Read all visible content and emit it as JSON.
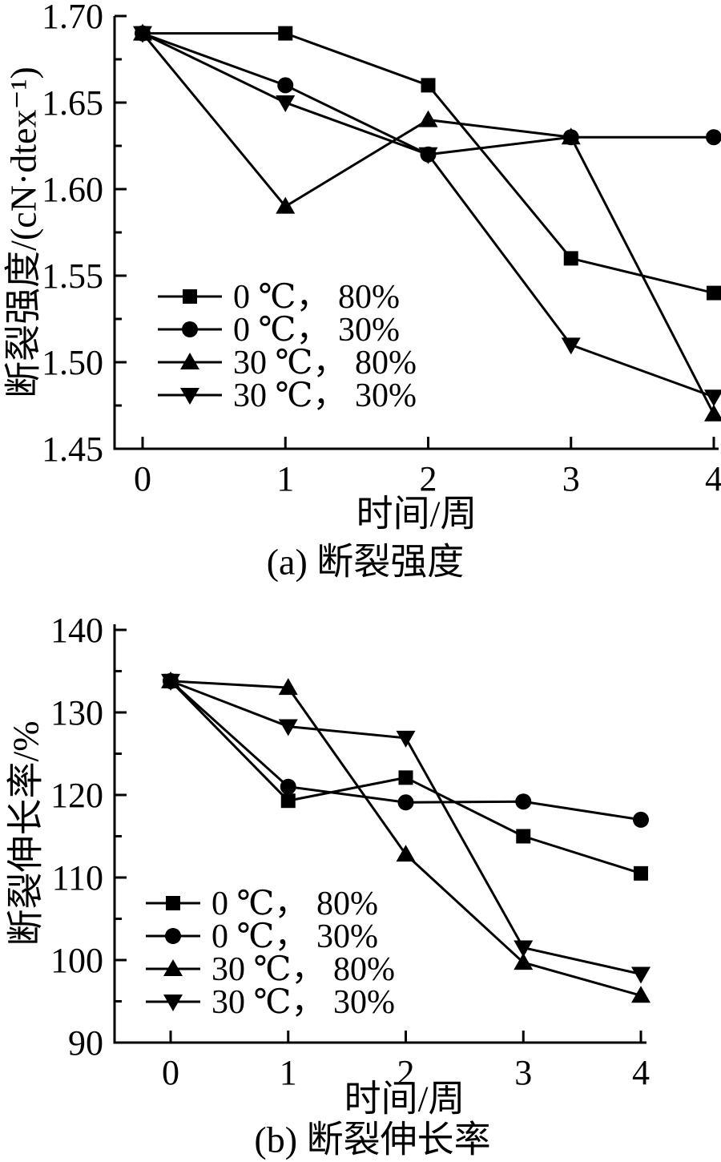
{
  "chart_data": [
    {
      "type": "line",
      "panel": "a",
      "caption": "(a) 断裂强度",
      "xlabel": "时间/周",
      "ylabel": "断裂强度/(cN·dtex⁻¹)",
      "x": [
        0,
        1,
        2,
        3,
        4
      ],
      "x_tick_labels": [
        "0",
        "1",
        "2",
        "3",
        "4"
      ],
      "ylim": [
        1.45,
        1.7
      ],
      "y_ticks": [
        {
          "v": 1.45,
          "label": "1.45"
        },
        {
          "v": 1.5,
          "label": "1.50"
        },
        {
          "v": 1.55,
          "label": "1.55"
        },
        {
          "v": 1.6,
          "label": "1.60"
        },
        {
          "v": 1.65,
          "label": "1.65"
        },
        {
          "v": 1.7,
          "label": "1.70"
        }
      ],
      "y_minor_ticks": [
        1.475,
        1.525,
        1.575,
        1.625,
        1.675
      ],
      "grid": false,
      "legend_position": "inside-lower-left",
      "series": [
        {
          "name": "0 ℃， 80%",
          "marker": "square",
          "values": [
            1.69,
            1.69,
            1.66,
            1.56,
            1.54
          ]
        },
        {
          "name": "0 ℃， 30%",
          "marker": "circle",
          "values": [
            1.69,
            1.66,
            1.62,
            1.63,
            1.63
          ]
        },
        {
          "name": "30 ℃， 80%",
          "marker": "triangle-up",
          "values": [
            1.69,
            1.59,
            1.64,
            1.63,
            1.47
          ]
        },
        {
          "name": "30 ℃， 30%",
          "marker": "triangle-down",
          "values": [
            1.69,
            1.65,
            1.62,
            1.51,
            1.48
          ]
        }
      ]
    },
    {
      "type": "line",
      "panel": "b",
      "caption": "(b) 断裂伸长率",
      "xlabel": "时间/周",
      "ylabel": "断裂伸长率/%",
      "x": [
        0,
        1,
        2,
        3,
        4
      ],
      "x_tick_labels": [
        "0",
        "1",
        "2",
        "3",
        "4"
      ],
      "ylim": [
        90,
        140
      ],
      "y_ticks": [
        {
          "v": 90,
          "label": "90"
        },
        {
          "v": 100,
          "label": "100"
        },
        {
          "v": 110,
          "label": "110"
        },
        {
          "v": 120,
          "label": "120"
        },
        {
          "v": 130,
          "label": "130"
        },
        {
          "v": 140,
          "label": "140"
        }
      ],
      "y_minor_ticks": [
        95,
        105,
        115,
        125,
        135
      ],
      "grid": false,
      "legend_position": "inside-lower-left",
      "series": [
        {
          "name": "0 ℃， 80%",
          "marker": "square",
          "values": [
            133.8,
            119.3,
            122.1,
            115.0,
            110.5
          ]
        },
        {
          "name": "0 ℃， 30%",
          "marker": "circle",
          "values": [
            133.8,
            121.0,
            119.1,
            119.2,
            117.0
          ]
        },
        {
          "name": "30 ℃， 80%",
          "marker": "triangle-up",
          "values": [
            133.8,
            133.0,
            112.8,
            99.7,
            95.7
          ]
        },
        {
          "name": "30 ℃， 30%",
          "marker": "triangle-down",
          "values": [
            133.8,
            128.3,
            126.9,
            101.5,
            98.3
          ]
        }
      ]
    }
  ],
  "colors": {
    "line": "#000000",
    "text": "#000000",
    "background": "#ffffff"
  }
}
